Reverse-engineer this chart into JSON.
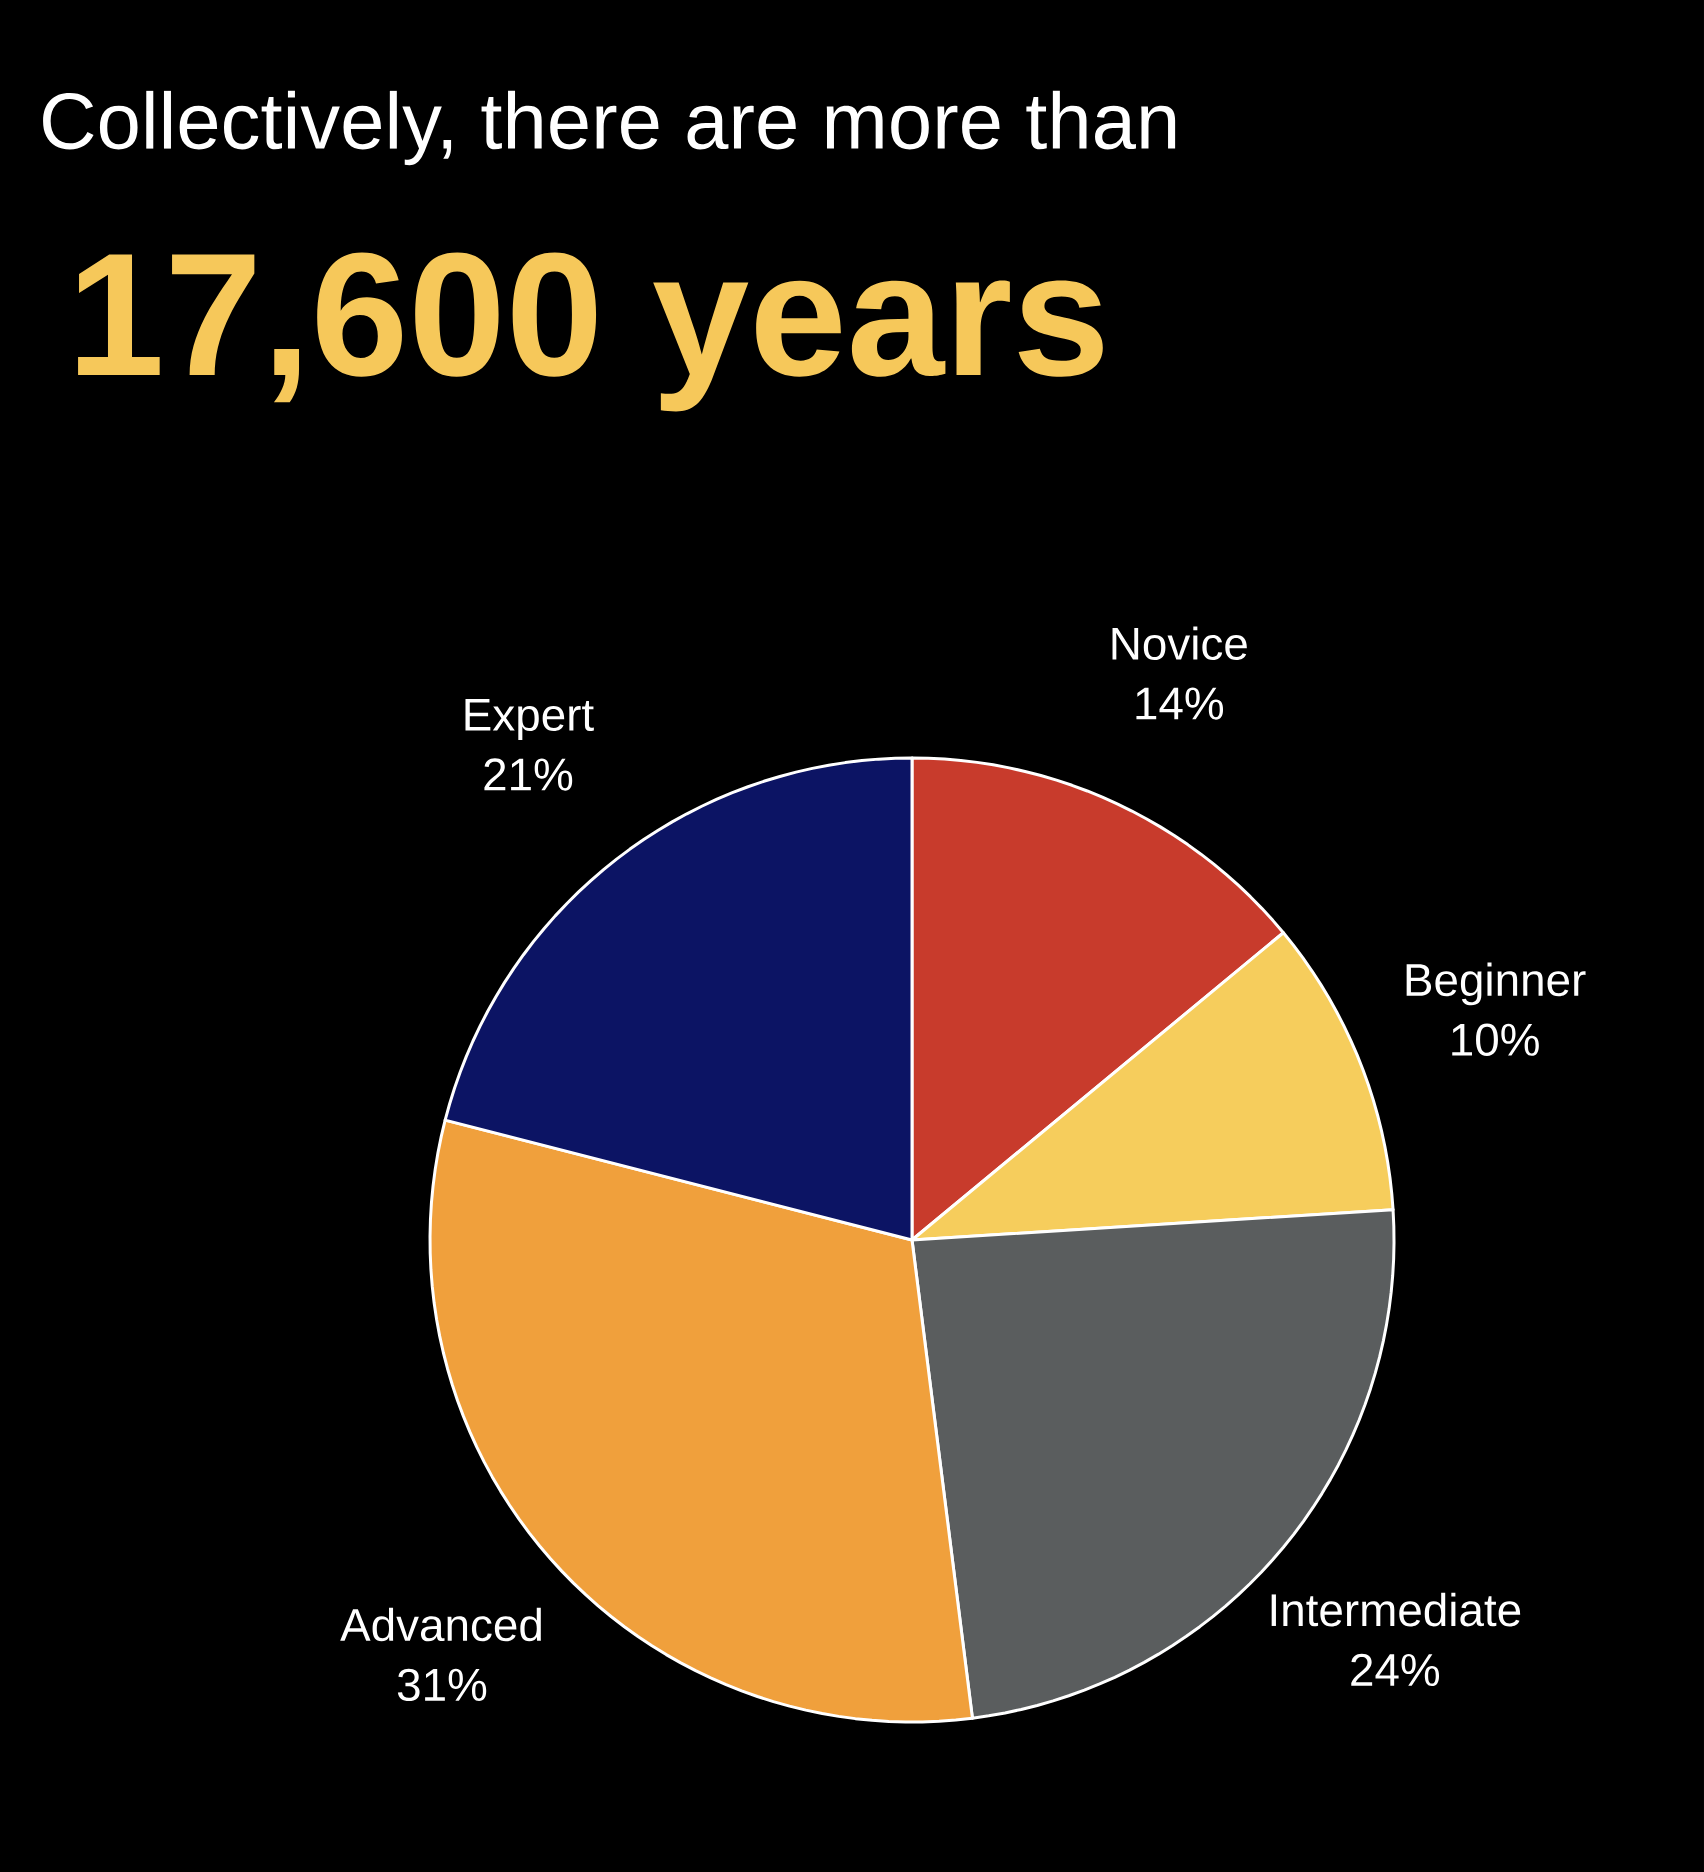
{
  "chart_data": {
    "type": "pie",
    "title": "Collectively, there are more than",
    "subtitle": "17,600 years",
    "categories": [
      "Novice",
      "Beginner",
      "Intermediate",
      "Advanced",
      "Expert"
    ],
    "values": [
      14,
      10,
      24,
      31,
      21
    ],
    "value_labels": [
      "14%",
      "10%",
      "24%",
      "31%",
      "21%"
    ],
    "colors": [
      "#c83b2c",
      "#f6cd5c",
      "#5a5d5e",
      "#f0a03c",
      "#0c1464"
    ]
  }
}
